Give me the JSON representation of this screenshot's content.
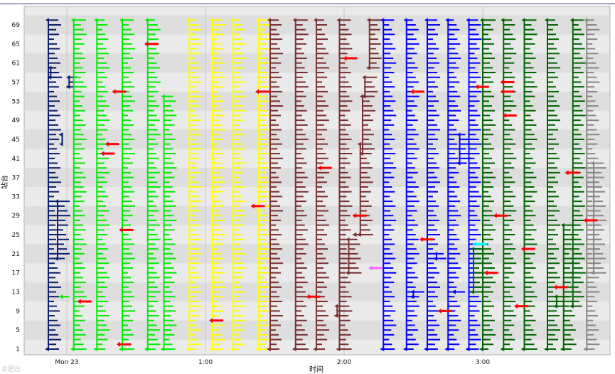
{
  "chart_data": {
    "type": "scatter",
    "title": "",
    "xlabel": "时间",
    "ylabel": "站台",
    "ylim": [
      0,
      72
    ],
    "yticks": [
      1,
      5,
      9,
      13,
      17,
      21,
      25,
      29,
      33,
      37,
      41,
      45,
      49,
      53,
      57,
      61,
      65,
      69
    ],
    "xlim_minutes": [
      -15,
      235
    ],
    "xticks": [
      {
        "label": "Mon 23",
        "minute": 0
      },
      {
        "label": "1:00",
        "minute": 60
      },
      {
        "label": "2:00",
        "minute": 120
      },
      {
        "label": "3:00",
        "minute": 180
      }
    ],
    "grid": true,
    "legend": "none",
    "series": [
      {
        "color": "#0b1e6e",
        "trains": [
          [
            -8,
            1,
            70
          ],
          [
            -4,
            20,
            32
          ],
          [
            -2,
            46,
            44
          ],
          [
            1,
            56,
            58
          ],
          [
            -7,
            58,
            60
          ]
        ]
      },
      {
        "color": "#00ee00",
        "trains": [
          [
            3,
            1,
            70
          ],
          [
            13,
            1,
            70
          ],
          [
            24,
            1,
            70
          ],
          [
            35,
            1,
            70
          ],
          [
            42,
            1,
            54
          ],
          [
            -2,
            12,
            12
          ]
        ]
      },
      {
        "color": "#ffff00",
        "trains": [
          [
            53,
            1,
            70
          ],
          [
            63,
            1,
            70
          ],
          [
            72,
            1,
            70
          ],
          [
            83,
            1,
            70
          ]
        ]
      },
      {
        "color": "#7a3030",
        "trains": [
          [
            88,
            1,
            70
          ],
          [
            99,
            1,
            70
          ],
          [
            108,
            1,
            70
          ],
          [
            118,
            1,
            70
          ],
          [
            117,
            8,
            10
          ],
          [
            122,
            17,
            24
          ],
          [
            125,
            25,
            25
          ],
          [
            127,
            25,
            44
          ],
          [
            128,
            42,
            54
          ],
          [
            129,
            54,
            58
          ],
          [
            131,
            60,
            70
          ]
        ]
      },
      {
        "color": "#0000ff",
        "trains": [
          [
            137,
            1,
            70
          ],
          [
            147,
            1,
            70
          ],
          [
            156,
            1,
            70
          ],
          [
            165,
            1,
            70
          ],
          [
            174,
            1,
            70
          ],
          [
            150,
            12,
            13
          ],
          [
            160,
            20,
            21
          ],
          [
            168,
            13,
            13
          ],
          [
            170,
            40,
            46
          ]
        ]
      },
      {
        "color": "#006600",
        "trains": [
          [
            180,
            1,
            70
          ],
          [
            189,
            1,
            70
          ],
          [
            198,
            1,
            70
          ],
          [
            208,
            1,
            70
          ],
          [
            212,
            10,
            12
          ],
          [
            215,
            1,
            27
          ],
          [
            219,
            10,
            70
          ],
          [
            176,
            13,
            22
          ]
        ]
      },
      {
        "color": "#888888",
        "trains": [
          [
            225,
            1,
            70
          ],
          [
            228,
            17,
            40
          ]
        ]
      }
    ],
    "highlights": [
      {
        "color": "#ff0000",
        "points": [
          [
            7,
            11
          ],
          [
            19,
            44
          ],
          [
            17,
            42
          ],
          [
            22,
            55
          ],
          [
            24,
            2
          ],
          [
            25,
            26
          ],
          [
            36,
            65
          ],
          [
            64,
            7
          ],
          [
            84,
            55
          ],
          [
            82,
            31
          ],
          [
            106,
            12
          ],
          [
            111,
            39
          ],
          [
            122,
            62
          ],
          [
            126,
            29
          ],
          [
            151,
            55
          ],
          [
            155,
            24
          ],
          [
            163,
            9
          ],
          [
            179,
            56
          ],
          [
            183,
            17
          ],
          [
            187,
            29
          ],
          [
            190,
            55
          ],
          [
            190,
            57
          ],
          [
            191,
            50
          ],
          [
            196,
            10
          ],
          [
            199,
            22
          ],
          [
            213,
            14
          ],
          [
            218,
            38
          ],
          [
            226,
            28
          ]
        ]
      },
      {
        "color": "#ff66ff",
        "points": [
          [
            133,
            18
          ]
        ]
      },
      {
        "color": "#00ffff",
        "points": [
          [
            178,
            23
          ]
        ]
      }
    ]
  },
  "watermark": "合肥古"
}
